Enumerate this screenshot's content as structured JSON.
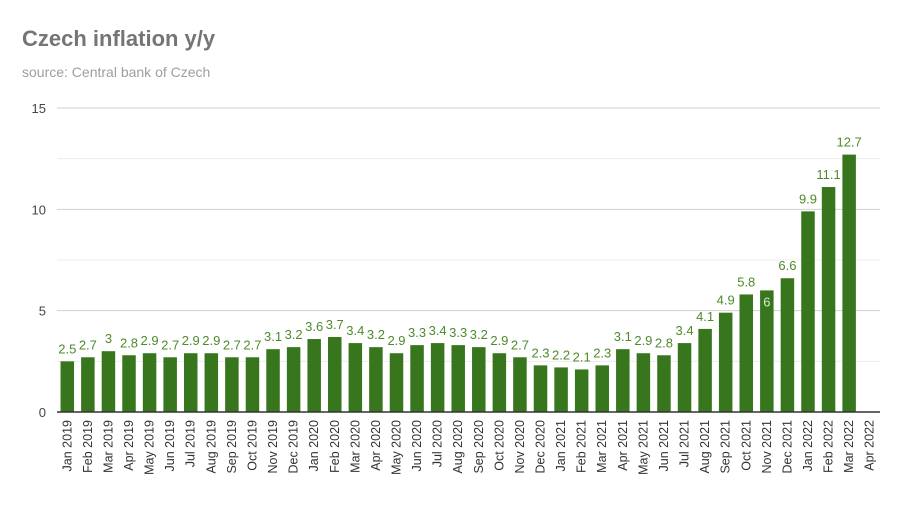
{
  "chart_data": {
    "type": "bar",
    "title": "Czech inflation y/y",
    "subtitle": "source: Central bank of Czech",
    "xlabel": "",
    "ylabel": "",
    "ylim": [
      0,
      15
    ],
    "yticks": [
      0,
      5,
      10,
      15
    ],
    "grid": true,
    "legend": "none",
    "colors": {
      "bar": "#38761d",
      "label": "#4e8a2a",
      "axis": "#333333"
    },
    "categories": [
      "Jan 2019",
      "Feb 2019",
      "Mar 2019",
      "Apr 2019",
      "May 2019",
      "Jun 2019",
      "Jul 2019",
      "Aug 2019",
      "Sep 2019",
      "Oct 2019",
      "Nov 2019",
      "Dec 2019",
      "Jan 2020",
      "Feb 2020",
      "Mar 2020",
      "Apr 2020",
      "May 2020",
      "Jun 2020",
      "Jul 2020",
      "Aug 2020",
      "Sep 2020",
      "Oct 2020",
      "Nov 2020",
      "Dec 2020",
      "Jan 2021",
      "Feb 2021",
      "Mar 2021",
      "Apr 2021",
      "May 2021",
      "Jun 2021",
      "Jul 2021",
      "Aug 2021",
      "Sep 2021",
      "Oct 2021",
      "Nov 2021",
      "Dec 2021",
      "Jan 2022",
      "Feb 2022",
      "Mar 2022",
      "Apr 2022"
    ],
    "values": [
      2.5,
      2.7,
      3,
      2.8,
      2.9,
      2.7,
      2.9,
      2.9,
      2.7,
      2.7,
      3.1,
      3.2,
      3.6,
      3.7,
      3.4,
      3.2,
      2.9,
      3.3,
      3.4,
      3.3,
      3.2,
      2.9,
      2.7,
      2.3,
      2.2,
      2.1,
      2.3,
      3.1,
      2.9,
      2.8,
      3.4,
      4.1,
      4.9,
      5.8,
      6,
      6.6,
      9.9,
      11.1,
      12.7,
      null
    ]
  }
}
